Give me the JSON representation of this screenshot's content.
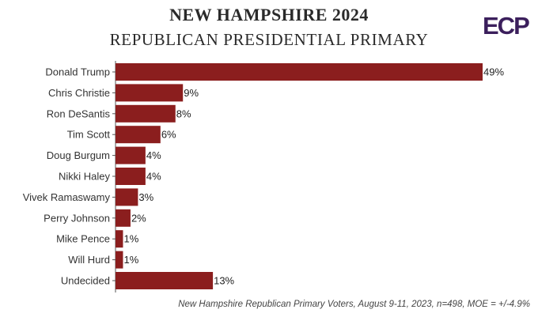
{
  "header": {
    "title_line1": "NEW HAMPSHIRE 2024",
    "title_line2": "REPUBLICAN PRESIDENTIAL PRIMARY",
    "logo_text": "ECP"
  },
  "footnote": "New Hampshire Republican Primary Voters, August 9-11, 2023, n=498, MOE = +/-4.9%",
  "colors": {
    "bar": "#8b1e1e",
    "logo": "#3b1f5c",
    "axis": "#555555"
  },
  "chart_data": {
    "type": "bar",
    "orientation": "horizontal",
    "title": "NEW HAMPSHIRE 2024 REPUBLICAN PRESIDENTIAL PRIMARY",
    "categories": [
      "Donald Trump",
      "Chris Christie",
      "Ron DeSantis",
      "Tim Scott",
      "Doug Burgum",
      "Nikki Haley",
      "Vivek Ramaswamy",
      "Perry Johnson",
      "Mike Pence",
      "Will Hurd",
      "Undecided"
    ],
    "values": [
      49,
      9,
      8,
      6,
      4,
      4,
      3,
      2,
      1,
      1,
      13
    ],
    "value_labels": [
      "49%",
      "9%",
      "8%",
      "6%",
      "4%",
      "4%",
      "3%",
      "2%",
      "1%",
      "1%",
      "13%"
    ],
    "unit": "%",
    "xlim": [
      0,
      49
    ],
    "grid": false,
    "legend": "none"
  }
}
